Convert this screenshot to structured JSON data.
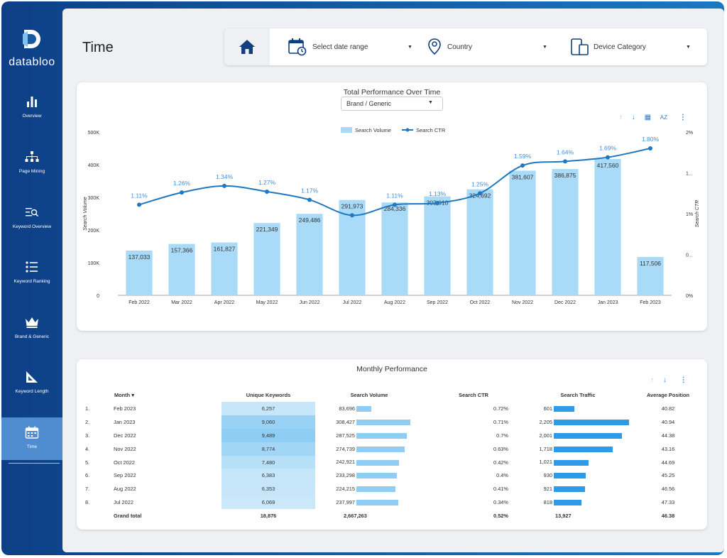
{
  "brand": {
    "name": "databloo"
  },
  "nav": [
    {
      "label": "Overview",
      "icon": "bar-chart-icon"
    },
    {
      "label": "Page Mining",
      "icon": "sitemap-icon"
    },
    {
      "label": "Keyword Overview",
      "icon": "list-search-icon"
    },
    {
      "label": "Keyword Ranking",
      "icon": "list-icon"
    },
    {
      "label": "Brand & Generic",
      "icon": "crown-icon"
    },
    {
      "label": "Keyword Length",
      "icon": "ruler-triangle-icon"
    },
    {
      "label": "Time",
      "icon": "calendar-icon",
      "active": true
    }
  ],
  "page": {
    "title": "Time"
  },
  "filters": {
    "date_range": "Select date range",
    "country": "Country",
    "device": "Device Category"
  },
  "chart_card": {
    "title": "Total Performance Over Time",
    "dropdown": "Brand / Generic"
  },
  "chart_data": {
    "type": "bar",
    "title": "Total Performance Over Time",
    "categories": [
      "Feb 2022",
      "Mar 2022",
      "Apr 2022",
      "May 2022",
      "Jun 2022",
      "Jul 2022",
      "Aug 2022",
      "Sep 2022",
      "Oct 2022",
      "Nov 2022",
      "Dec 2022",
      "Jan 2023",
      "Feb 2023"
    ],
    "series": [
      {
        "name": "Search Volume",
        "type": "bar",
        "values": [
          137033,
          157366,
          161827,
          221349,
          249486,
          291973,
          284336,
          303010,
          324692,
          381607,
          386875,
          417560,
          117506
        ],
        "labels": [
          "137,033",
          "157,366",
          "161,827",
          "221,349",
          "249,486",
          "291,973",
          "284,336",
          "303,010",
          "324,692",
          "381,607",
          "386,875",
          "417,560",
          "117,506"
        ]
      },
      {
        "name": "Search CTR",
        "type": "line",
        "values": [
          1.11,
          1.26,
          1.34,
          1.27,
          1.17,
          0.98,
          1.11,
          1.13,
          1.25,
          1.59,
          1.64,
          1.69,
          1.8
        ],
        "labels": [
          "1.11%",
          "1.26%",
          "1.34%",
          "1.27%",
          "1.17%",
          "",
          "1.11%",
          "1.13%",
          "1.25%",
          "1.59%",
          "1.64%",
          "1.69%",
          "1.80%"
        ]
      }
    ],
    "ylabel": "Search Volume",
    "y2label": "Search CTR",
    "ylim": [
      0,
      500000
    ],
    "y2lim": [
      0,
      2
    ],
    "yticks": [
      "0",
      "100K",
      "200K",
      "300K",
      "400K",
      "500K"
    ],
    "y2ticks": [
      "0%",
      "0...",
      "1%",
      "1...",
      "2%"
    ],
    "legend_position": "top-center",
    "colors": {
      "bar": "#a9daf7",
      "line": "#1f78c1",
      "label": "#3d8fdc"
    }
  },
  "table_card": {
    "title": "Monthly Performance"
  },
  "table": {
    "headers": [
      "Month",
      "Unique Keywords",
      "Search Volume",
      "Search CTR",
      "Search Traffic",
      "Average Position"
    ],
    "rows": [
      {
        "idx": "1.",
        "month": "Feb 2023",
        "uk": "6,257",
        "sv": "83,696",
        "sv_n": 83696,
        "ctr": "0.72%",
        "st": "601",
        "st_n": 601,
        "pos": "40.82"
      },
      {
        "idx": "2.",
        "month": "Jan 2023",
        "uk": "9,060",
        "sv": "308,427",
        "sv_n": 308427,
        "ctr": "0.71%",
        "st": "2,205",
        "st_n": 2205,
        "pos": "40.94"
      },
      {
        "idx": "3.",
        "month": "Dec 2022",
        "uk": "9,489",
        "sv": "287,525",
        "sv_n": 287525,
        "ctr": "0.7%",
        "st": "2,001",
        "st_n": 2001,
        "pos": "44.38"
      },
      {
        "idx": "4.",
        "month": "Nov 2022",
        "uk": "8,774",
        "sv": "274,739",
        "sv_n": 274739,
        "ctr": "0.63%",
        "st": "1,718",
        "st_n": 1718,
        "pos": "43.16"
      },
      {
        "idx": "5.",
        "month": "Oct 2022",
        "uk": "7,480",
        "sv": "242,921",
        "sv_n": 242921,
        "ctr": "0.42%",
        "st": "1,021",
        "st_n": 1021,
        "pos": "44.69"
      },
      {
        "idx": "6.",
        "month": "Sep 2022",
        "uk": "6,383",
        "sv": "233,298",
        "sv_n": 233298,
        "ctr": "0.4%",
        "st": "930",
        "st_n": 930,
        "pos": "45.25"
      },
      {
        "idx": "7.",
        "month": "Aug 2022",
        "uk": "6,353",
        "sv": "224,215",
        "sv_n": 224215,
        "ctr": "0.41%",
        "st": "921",
        "st_n": 921,
        "pos": "46.56"
      },
      {
        "idx": "8.",
        "month": "Jul 2022",
        "uk": "6,069",
        "sv": "237,997",
        "sv_n": 237997,
        "ctr": "0.34%",
        "st": "818",
        "st_n": 818,
        "pos": "47.33"
      }
    ],
    "total": {
      "label": "Grand total",
      "uk": "18,876",
      "sv": "2,667,263",
      "ctr": "0.52%",
      "st": "13,927",
      "pos": "46.38"
    }
  }
}
